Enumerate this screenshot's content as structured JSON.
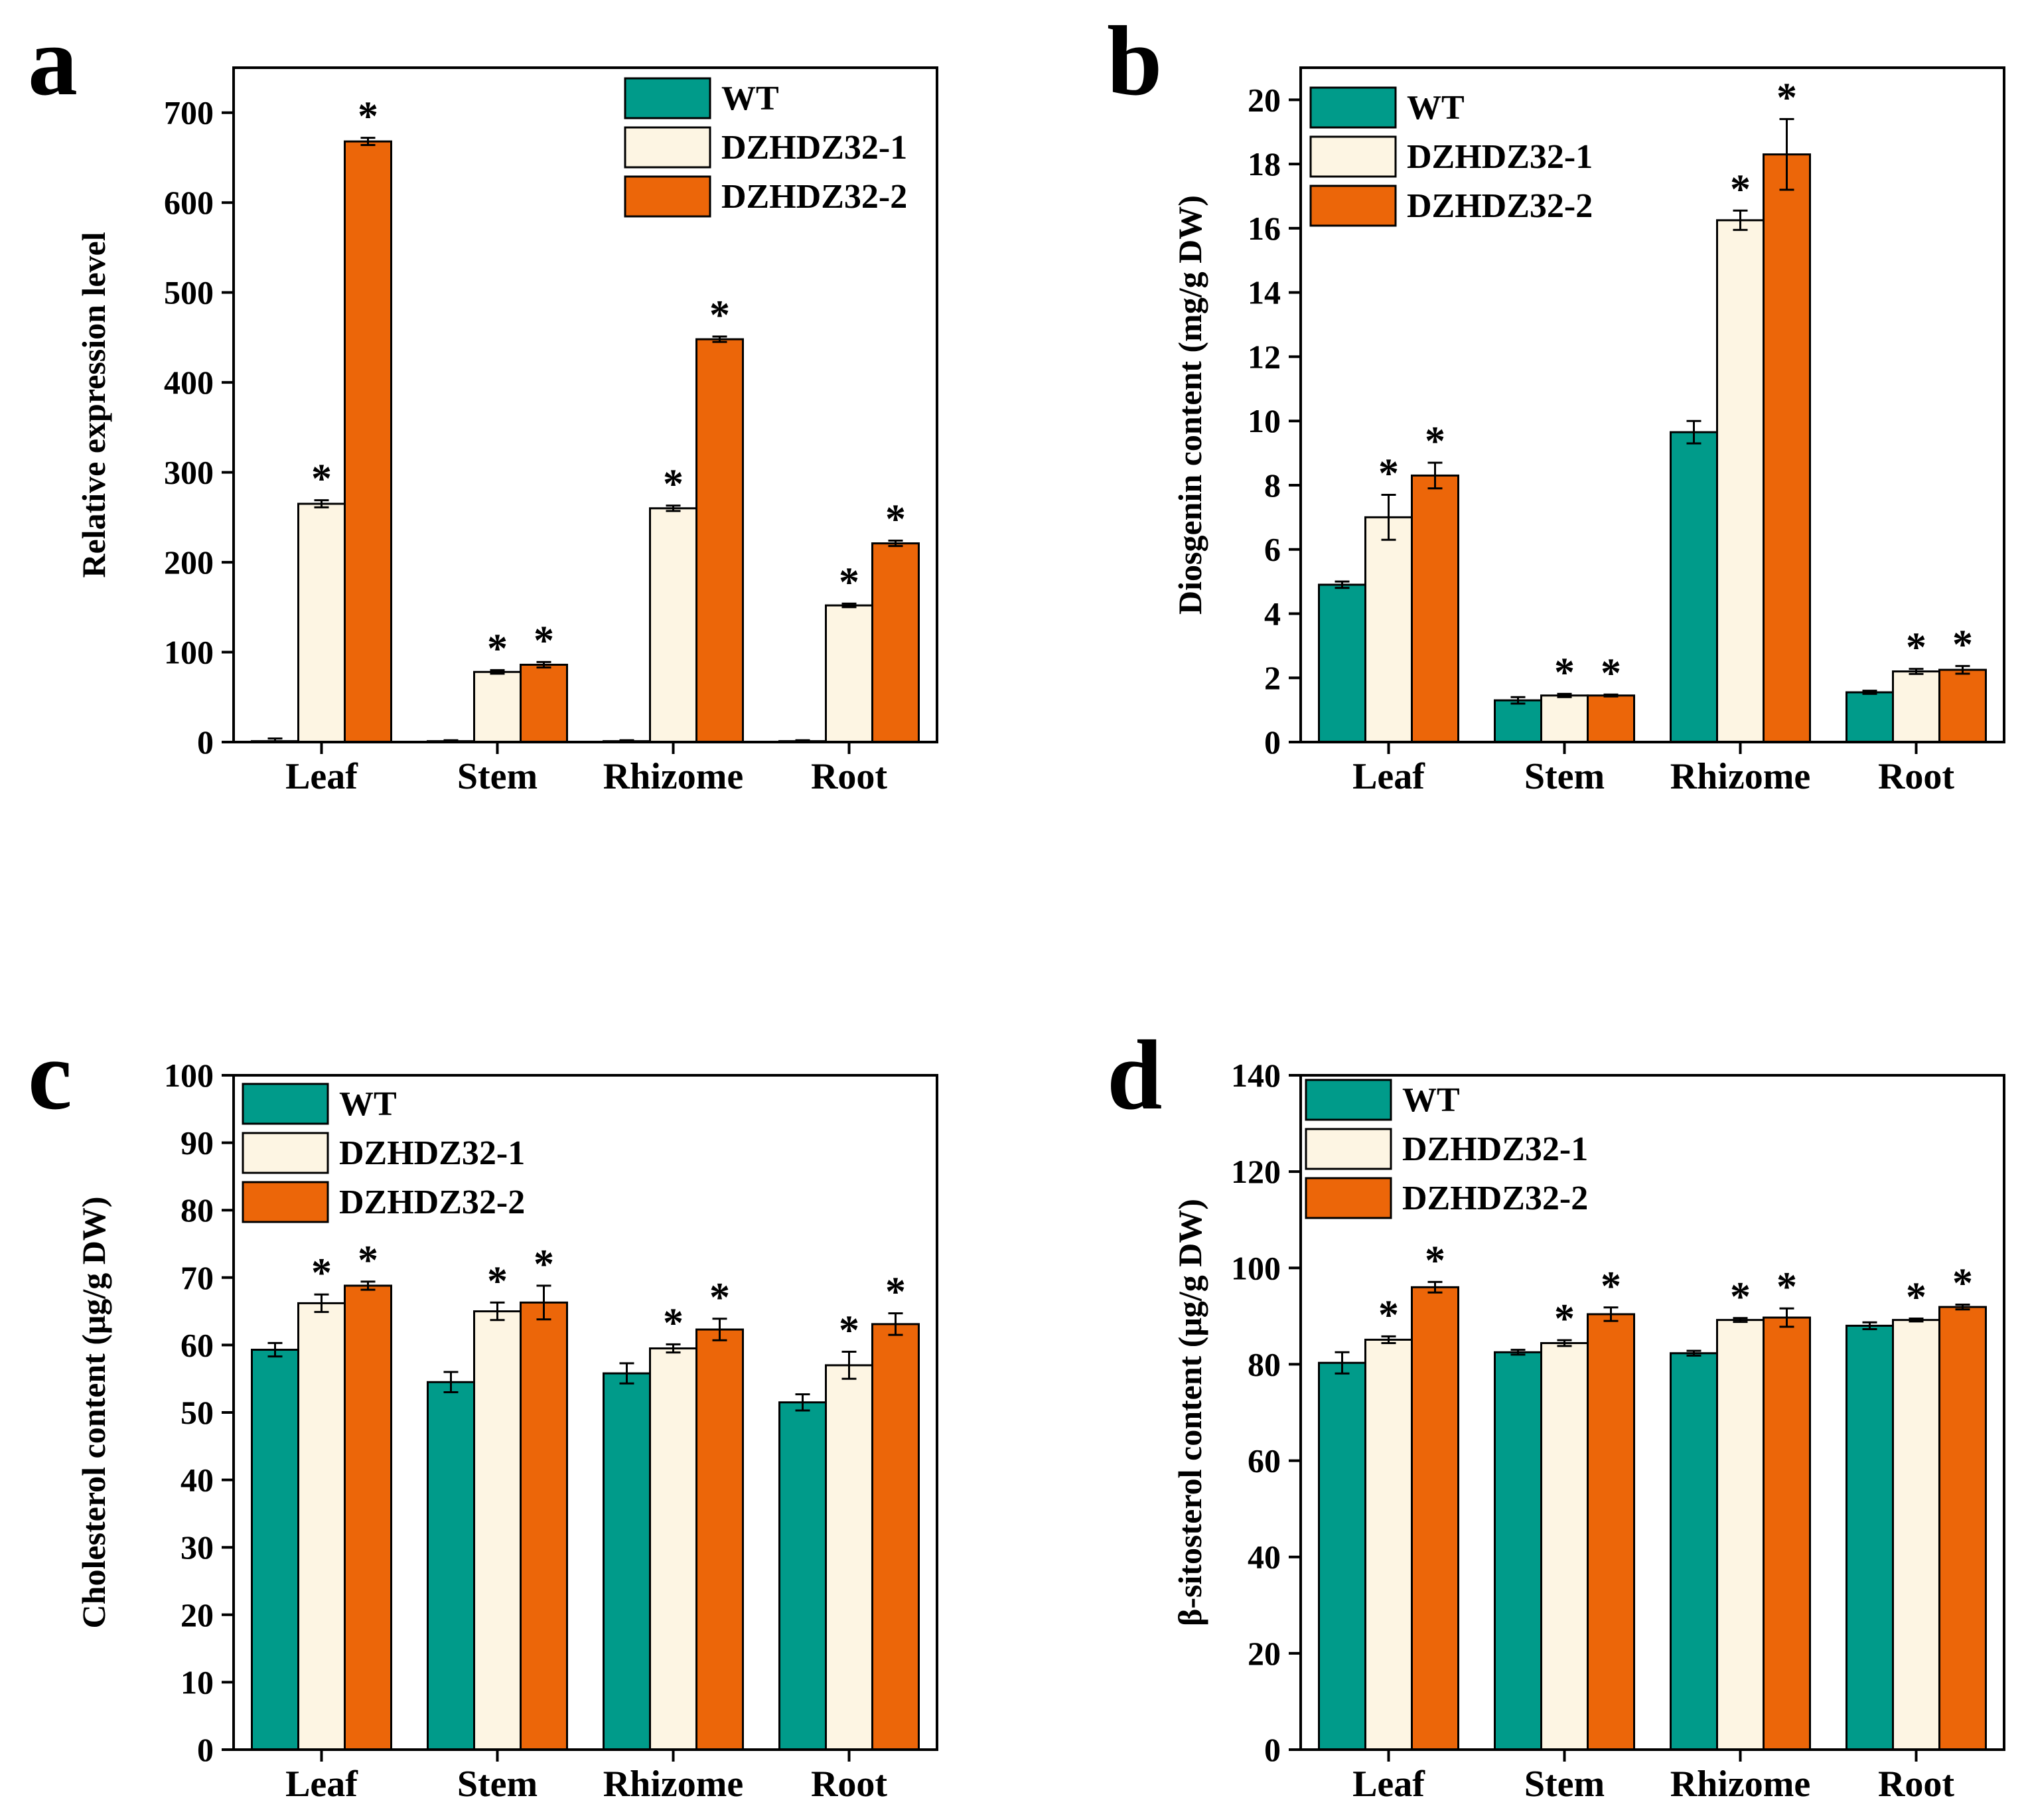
{
  "colors": {
    "WT": "#009b8a",
    "DZHDZ32-1": "#fdf5e3",
    "DZHDZ32-2": "#ec6609",
    "stroke": "#000000"
  },
  "chart_data": [
    {
      "panel": "a",
      "type": "bar",
      "categories": [
        "Leaf",
        "Stem",
        "Rhizome",
        "Root"
      ],
      "ylabel": "Relative expression level",
      "xlabel": "",
      "ylim": [
        0,
        750
      ],
      "yticks": [
        0,
        100,
        200,
        300,
        400,
        500,
        600,
        700
      ],
      "legend_position": "top-right",
      "series": [
        {
          "name": "WT",
          "values": [
            1,
            1,
            1,
            1
          ],
          "errors": [
            3,
            1,
            1,
            1
          ],
          "sig": [
            false,
            false,
            false,
            false
          ]
        },
        {
          "name": "DZHDZ32-1",
          "values": [
            265,
            78,
            260,
            152
          ],
          "errors": [
            4,
            2,
            3,
            2
          ],
          "sig": [
            true,
            true,
            true,
            true
          ]
        },
        {
          "name": "DZHDZ32-2",
          "values": [
            668,
            86,
            448,
            221
          ],
          "errors": [
            4,
            3,
            3,
            3
          ],
          "sig": [
            true,
            true,
            true,
            true
          ]
        }
      ]
    },
    {
      "panel": "b",
      "type": "bar",
      "categories": [
        "Leaf",
        "Stem",
        "Rhizome",
        "Root"
      ],
      "ylabel": "Diosgenin content (mg/g DW)",
      "xlabel": "",
      "ylim": [
        0,
        21
      ],
      "yticks": [
        0,
        2,
        4,
        6,
        8,
        10,
        12,
        14,
        16,
        18,
        20
      ],
      "legend_position": "top-left",
      "series": [
        {
          "name": "WT",
          "values": [
            4.9,
            1.3,
            9.65,
            1.55
          ],
          "errors": [
            0.1,
            0.1,
            0.35,
            0.05
          ],
          "sig": [
            false,
            false,
            false,
            false
          ]
        },
        {
          "name": "DZHDZ32-1",
          "values": [
            7.0,
            1.45,
            16.25,
            2.2
          ],
          "errors": [
            0.7,
            0.05,
            0.3,
            0.08
          ],
          "sig": [
            true,
            true,
            true,
            true
          ]
        },
        {
          "name": "DZHDZ32-2",
          "values": [
            8.3,
            1.45,
            18.3,
            2.25
          ],
          "errors": [
            0.4,
            0.03,
            1.1,
            0.12
          ],
          "sig": [
            true,
            true,
            true,
            true
          ]
        }
      ]
    },
    {
      "panel": "c",
      "type": "bar",
      "categories": [
        "Leaf",
        "Stem",
        "Rhizome",
        "Root"
      ],
      "ylabel": "Cholesterol content (μg/g DW)",
      "xlabel": "",
      "ylim": [
        0,
        100
      ],
      "yticks": [
        0,
        10,
        20,
        30,
        40,
        50,
        60,
        70,
        80,
        90,
        100
      ],
      "legend_position": "top-left",
      "series": [
        {
          "name": "WT",
          "values": [
            59.3,
            54.5,
            55.8,
            51.5
          ],
          "errors": [
            1.0,
            1.5,
            1.5,
            1.2
          ],
          "sig": [
            false,
            false,
            false,
            false
          ]
        },
        {
          "name": "DZHDZ32-1",
          "values": [
            66.2,
            65.0,
            59.5,
            57.0
          ],
          "errors": [
            1.3,
            1.3,
            0.6,
            2.0
          ],
          "sig": [
            true,
            true,
            true,
            true
          ]
        },
        {
          "name": "DZHDZ32-2",
          "values": [
            68.8,
            66.3,
            62.3,
            63.1
          ],
          "errors": [
            0.6,
            2.5,
            1.6,
            1.6
          ],
          "sig": [
            true,
            true,
            true,
            true
          ]
        }
      ]
    },
    {
      "panel": "d",
      "type": "bar",
      "categories": [
        "Leaf",
        "Stem",
        "Rhizome",
        "Root"
      ],
      "ylabel": "β-sitosterol content (μg/g DW)",
      "xlabel": "",
      "ylim": [
        0,
        140
      ],
      "yticks": [
        0,
        20,
        40,
        60,
        80,
        100,
        120,
        140
      ],
      "legend_position": "top-left",
      "series": [
        {
          "name": "WT",
          "values": [
            80.3,
            82.5,
            82.3,
            88.0
          ],
          "errors": [
            2.2,
            0.5,
            0.5,
            0.7
          ],
          "sig": [
            false,
            false,
            false,
            false
          ]
        },
        {
          "name": "DZHDZ32-1",
          "values": [
            85.1,
            84.4,
            89.2,
            89.2
          ],
          "errors": [
            0.7,
            0.6,
            0.4,
            0.3
          ],
          "sig": [
            true,
            true,
            true,
            true
          ]
        },
        {
          "name": "DZHDZ32-2",
          "values": [
            96.0,
            90.4,
            89.7,
            91.9
          ],
          "errors": [
            1.1,
            1.4,
            1.9,
            0.5
          ],
          "sig": [
            true,
            true,
            true,
            true
          ]
        }
      ]
    }
  ]
}
